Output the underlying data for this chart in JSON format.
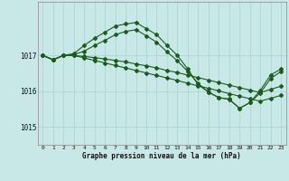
{
  "background_color": "#c8e8e8",
  "grid_color": "#a8d0d0",
  "line_color": "#1a5c1a",
  "xlabel": "Graphe pression niveau de la mer (hPa)",
  "ylim": [
    1014.5,
    1018.5
  ],
  "yticks": [
    1015,
    1016,
    1017
  ],
  "series1_x": [
    0,
    1,
    2,
    3,
    4,
    5,
    6,
    7,
    8,
    9,
    10,
    11,
    12,
    13,
    14,
    15,
    16,
    17,
    18,
    19,
    20,
    21,
    22,
    23
  ],
  "series1_y": [
    1017.0,
    1016.88,
    1017.0,
    1017.05,
    1017.28,
    1017.48,
    1017.65,
    1017.82,
    1017.88,
    1017.92,
    1017.75,
    1017.58,
    1017.28,
    1017.0,
    1016.62,
    1016.18,
    1015.98,
    1015.82,
    1015.78,
    1015.52,
    1015.68,
    1016.02,
    1016.45,
    1016.62
  ],
  "series2_x": [
    0,
    1,
    2,
    3,
    4,
    5,
    6,
    7,
    8,
    9,
    10,
    11,
    12,
    13,
    14,
    15,
    16,
    17,
    18,
    19,
    20,
    21,
    22,
    23
  ],
  "series2_y": [
    1017.0,
    1016.88,
    1017.0,
    1017.02,
    1017.12,
    1017.28,
    1017.42,
    1017.58,
    1017.67,
    1017.72,
    1017.55,
    1017.37,
    1017.1,
    1016.85,
    1016.55,
    1016.22,
    1015.97,
    1015.82,
    1015.77,
    1015.52,
    1015.68,
    1015.95,
    1016.35,
    1016.55
  ],
  "series3_x": [
    0,
    1,
    2,
    3,
    4,
    5,
    6,
    7,
    8,
    9,
    10,
    11,
    12,
    13,
    14,
    15,
    16,
    17,
    18,
    19,
    20,
    21,
    22,
    23
  ],
  "series3_y": [
    1017.0,
    1016.88,
    1017.0,
    1017.0,
    1016.97,
    1016.94,
    1016.9,
    1016.86,
    1016.82,
    1016.76,
    1016.71,
    1016.65,
    1016.58,
    1016.52,
    1016.45,
    1016.38,
    1016.31,
    1016.24,
    1016.17,
    1016.1,
    1016.03,
    1015.96,
    1016.05,
    1016.14
  ],
  "series4_x": [
    0,
    1,
    2,
    3,
    4,
    5,
    6,
    7,
    8,
    9,
    10,
    11,
    12,
    13,
    14,
    15,
    16,
    17,
    18,
    19,
    20,
    21,
    22,
    23
  ],
  "series4_y": [
    1017.0,
    1016.88,
    1017.0,
    1017.0,
    1016.93,
    1016.86,
    1016.79,
    1016.72,
    1016.65,
    1016.58,
    1016.51,
    1016.44,
    1016.37,
    1016.3,
    1016.22,
    1016.15,
    1016.08,
    1016.01,
    1015.93,
    1015.86,
    1015.79,
    1015.72,
    1015.8,
    1015.88
  ],
  "marker_indices1": [
    0,
    1,
    2,
    3,
    4,
    5,
    6,
    7,
    8,
    9,
    10,
    11,
    12,
    13,
    14,
    15,
    16,
    17,
    18,
    19,
    20,
    21,
    22,
    23
  ],
  "marker_indices2": [
    0,
    1,
    2,
    3,
    4,
    5,
    6,
    7,
    8,
    9,
    10,
    11,
    12,
    13,
    14,
    15,
    16,
    17,
    18,
    19,
    20,
    21,
    22,
    23
  ],
  "marker_indices3": [
    0,
    1,
    2,
    3,
    4,
    5,
    6,
    7,
    8,
    9,
    10,
    11,
    12,
    13,
    14,
    15,
    16,
    17,
    18,
    19,
    20,
    21,
    22,
    23
  ],
  "marker_indices4": [
    0,
    1,
    2,
    3,
    4,
    5,
    6,
    7,
    8,
    9,
    10,
    11,
    12,
    13,
    14,
    15,
    16,
    17,
    18,
    19,
    20,
    21,
    22,
    23
  ]
}
